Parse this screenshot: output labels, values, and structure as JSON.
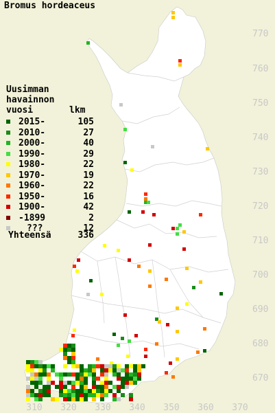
{
  "title": "Bromus hordeaceus",
  "legend": {
    "heading_line1": "Uusimman",
    "heading_line2": "havainnon",
    "heading_col1": "vuosi",
    "heading_col2": "lkm",
    "items": [
      {
        "label": "2015-",
        "count": "105",
        "color": "#006400"
      },
      {
        "label": "2010-",
        "count": "27",
        "color": "#1a8c1a"
      },
      {
        "label": "2000-",
        "count": "40",
        "color": "#22b422"
      },
      {
        "label": "1990-",
        "count": "29",
        "color": "#44dd44"
      },
      {
        "label": "1980-",
        "count": "22",
        "color": "#ffff00"
      },
      {
        "label": "1970-",
        "count": "19",
        "color": "#ffc800"
      },
      {
        "label": "1960-",
        "count": "22",
        "color": "#ff7800"
      },
      {
        "label": "1950-",
        "count": "16",
        "color": "#ff2800"
      },
      {
        "label": "1900-",
        "count": "42",
        "color": "#d20000"
      },
      {
        "label": "-1899",
        "count": "2",
        "color": "#820000"
      },
      {
        "label": "???",
        "count": "12",
        "color": "#c8c8c8"
      }
    ],
    "total_label": "Yhteensä",
    "total_count": "336"
  },
  "axes": {
    "x_ticks": [
      "310",
      "320",
      "330",
      "340",
      "350",
      "360",
      "370"
    ],
    "y_ticks": [
      "670",
      "680",
      "690",
      "700",
      "710",
      "720",
      "730",
      "740",
      "750",
      "760",
      "770"
    ]
  },
  "colors": {
    "land": "#ffffff",
    "background": "#f2f2da",
    "grid_label": "#c8c8c8",
    "border": "#cccccc"
  }
}
